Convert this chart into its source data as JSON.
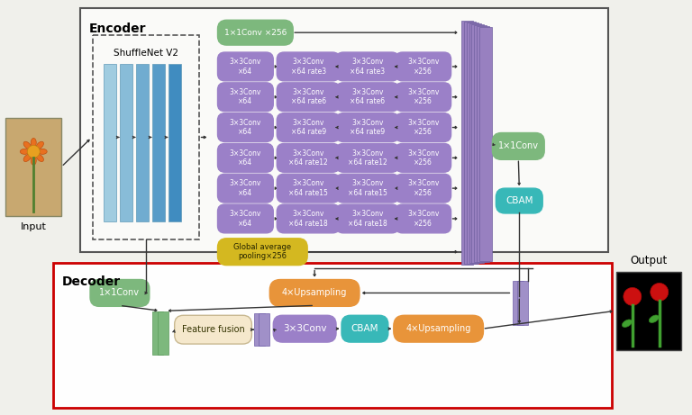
{
  "bg_color": "#f0f0eb",
  "colors": {
    "green": "#7db87d",
    "purple": "#9b80c8",
    "orange": "#e8943a",
    "teal": "#38b8b8",
    "yellow": "#d4b820",
    "feature_fusion_bg": "#f5e8cc",
    "stack_purple": "#9080b8",
    "blue_layer": [
      "#a0cce0",
      "#88bcd8",
      "#70acd0",
      "#589cc8",
      "#408cc0"
    ],
    "encoder_edge": "#555555",
    "decoder_edge": "#cc0000"
  },
  "atrous_rows": [
    [
      "3×3Conv\n×64",
      "3×3Conv\n×64 rate3",
      "3×3Conv\n×64 rate3",
      "3×3Conv\n×256"
    ],
    [
      "3×3Conv\n×64",
      "3×3Conv\n×64 rate6",
      "3×3Conv\n×64 rate6",
      "3×3Conv\n×256"
    ],
    [
      "3×3Conv\n×64",
      "3×3Conv\n×64 rate9",
      "3×3Conv\n×64 rate9",
      "3×3Conv\n×256"
    ],
    [
      "3×3Conv\n×64",
      "3×3Conv\n×64 rate12",
      "3×3Conv\n×64 rate12",
      "3×3Conv\n×256"
    ],
    [
      "3×3Conv\n×64",
      "3×3Conv\n×64 rate15",
      "3×3Conv\n×64 rate15",
      "3×3Conv\n×256"
    ],
    [
      "3×3Conv\n×64",
      "3×3Conv\n×64 rate18",
      "3×3Conv\n×64 rate18",
      "3×3Conv\n×256"
    ]
  ]
}
